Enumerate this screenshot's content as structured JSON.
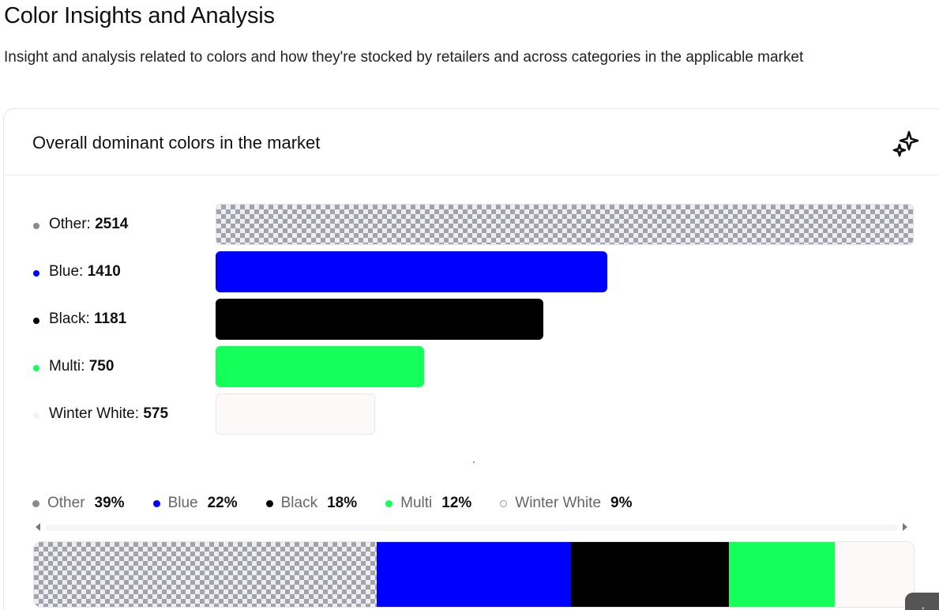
{
  "page": {
    "title": "Color Insights and Analysis",
    "subtitle": "Insight and analysis related to colors and how they're stocked by retailers and across categories in the applicable market"
  },
  "card": {
    "title": "Overall dominant colors in the market",
    "action_icon": "sparkle-icon"
  },
  "chart_data": {
    "type": "bar",
    "orientation": "horizontal",
    "categories": [
      "Other",
      "Blue",
      "Black",
      "Multi",
      "Winter White"
    ],
    "values": [
      2514,
      1410,
      1181,
      750,
      575
    ],
    "colors": [
      "pattern",
      "#0000ff",
      "#000000",
      "#14ff5a",
      "#fdf9f8"
    ],
    "dot_colors": [
      "#8a8a8f",
      "#0000ff",
      "#000000",
      "#14ff5a",
      "#f5f2f2"
    ],
    "legend": [
      {
        "name": "Other",
        "percent": "39%"
      },
      {
        "name": "Blue",
        "percent": "22%"
      },
      {
        "name": "Black",
        "percent": "18%"
      },
      {
        "name": "Multi",
        "percent": "12%"
      },
      {
        "name": "Winter White",
        "percent": "9%"
      }
    ],
    "stacked_bar": {
      "type": "stacked-bar",
      "percentages": [
        39,
        22,
        18,
        12,
        9
      ]
    },
    "grid": false
  }
}
